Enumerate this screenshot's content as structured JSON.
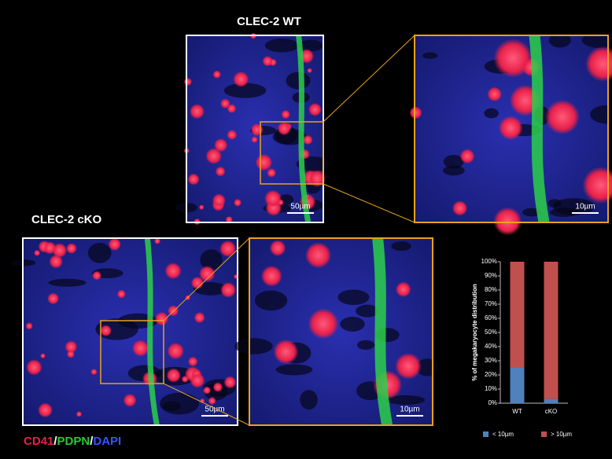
{
  "figure": {
    "wt_title": "CLEC-2 WT",
    "ko_title": "CLEC-2 cKO",
    "wt_scale_main": "50µm",
    "wt_scale_zoom": "10µm",
    "ko_scale_main": "50µm",
    "ko_scale_zoom": "10µm",
    "stain": [
      "CD41",
      "/",
      "PDPN",
      "/",
      "DAPI"
    ]
  },
  "chart_data": {
    "type": "bar",
    "stacked": true,
    "y_label": "% of megakaryocyte distribution",
    "categories": [
      "WT",
      "cKO"
    ],
    "series": [
      {
        "name": "< 10µm",
        "color": "#4f81bd",
        "values": [
          25,
          3
        ]
      },
      {
        "name": "> 10µm",
        "color": "#c0504d",
        "values": [
          75,
          97
        ]
      }
    ],
    "ylim": [
      0,
      100
    ],
    "yticks": [
      {
        "value": 0,
        "label": "0%"
      },
      {
        "value": 10,
        "label": "10%"
      },
      {
        "value": 20,
        "label": "20%"
      },
      {
        "value": 30,
        "label": "30%"
      },
      {
        "value": 40,
        "label": "40%"
      },
      {
        "value": 50,
        "label": "50%"
      },
      {
        "value": 60,
        "label": "60%"
      },
      {
        "value": 70,
        "label": "70%"
      },
      {
        "value": 80,
        "label": "80%"
      },
      {
        "value": 90,
        "label": "90%"
      },
      {
        "value": 100,
        "label": "100%"
      }
    ],
    "legend": "bottom"
  }
}
